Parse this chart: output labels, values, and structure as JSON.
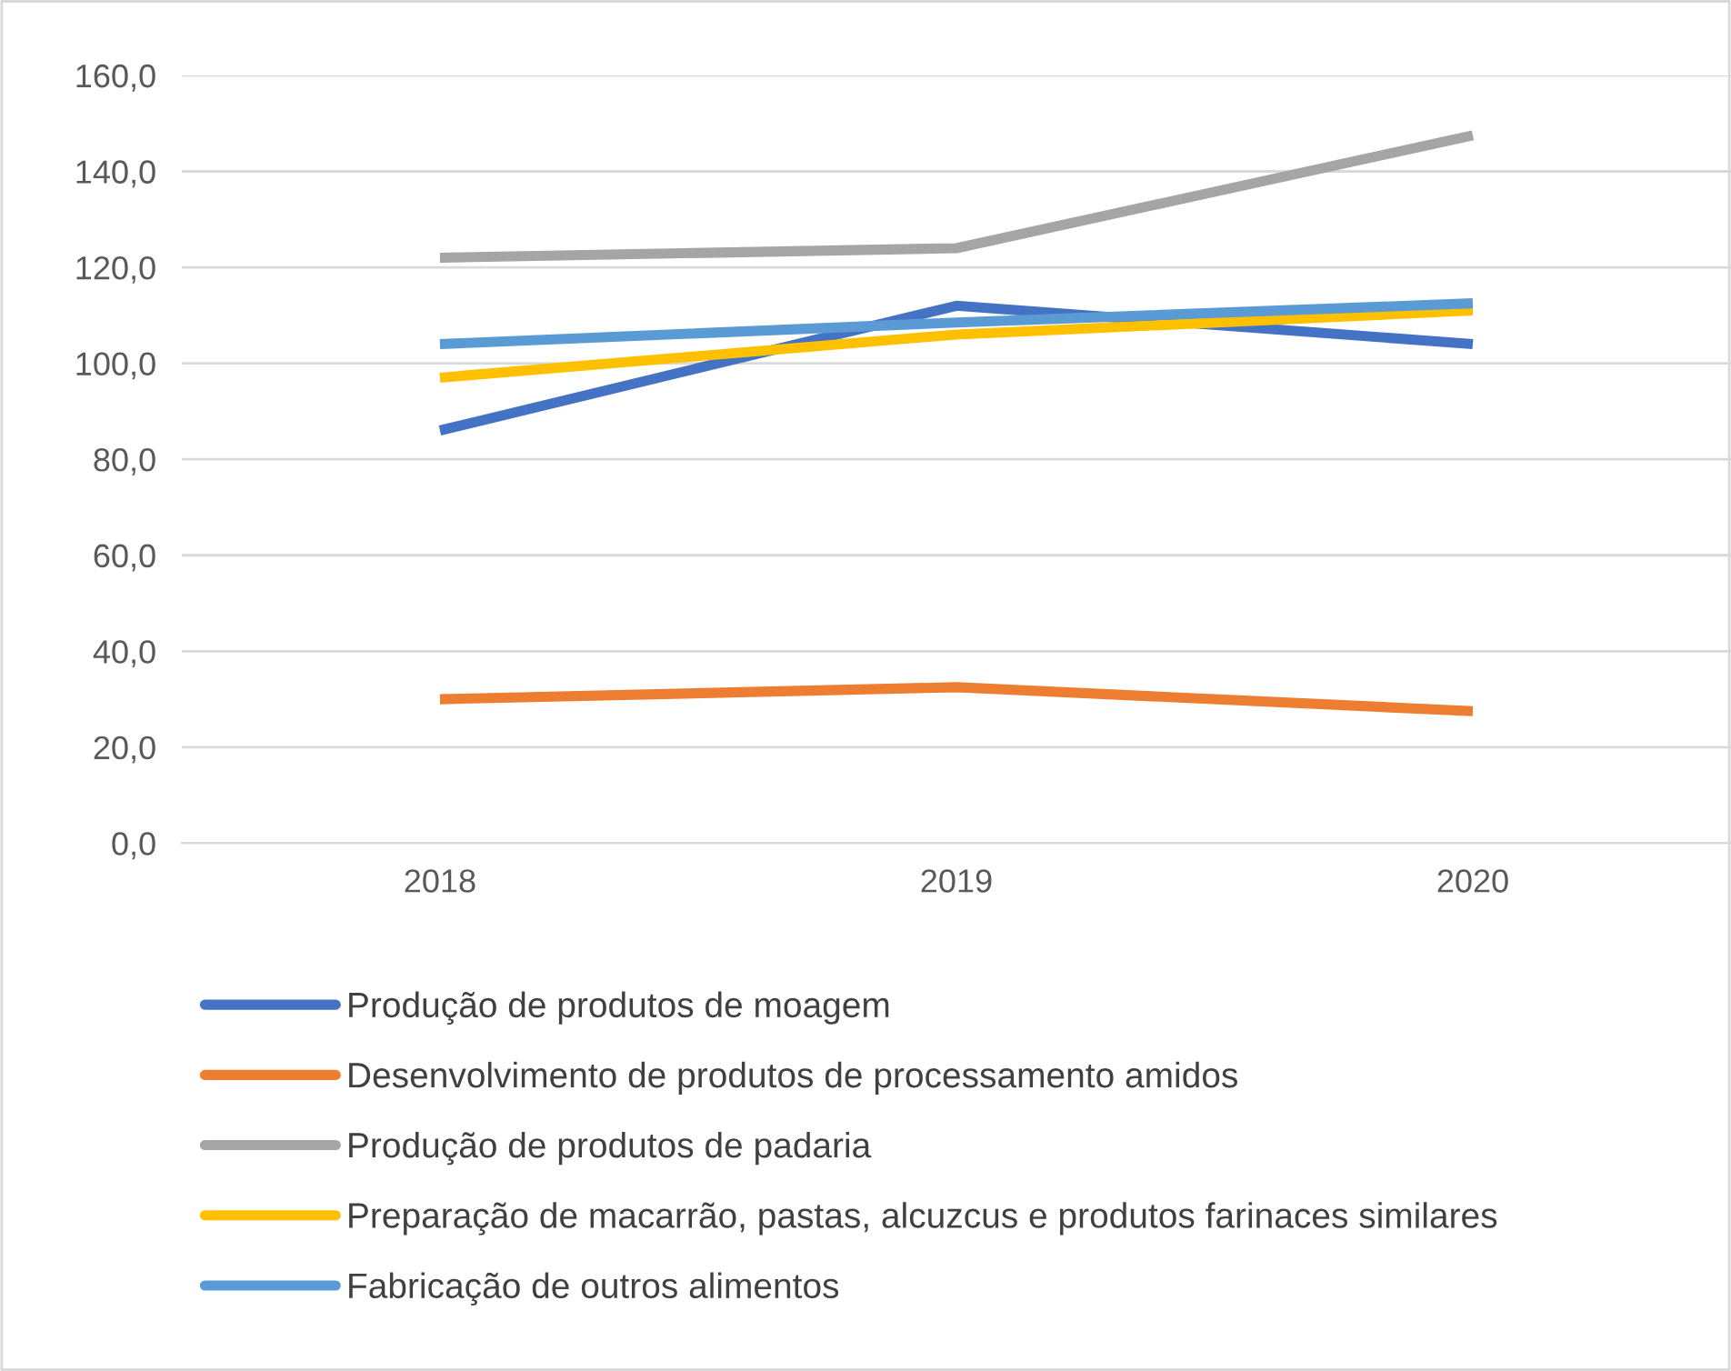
{
  "chart_data": {
    "type": "line",
    "categories": [
      "2018",
      "2019",
      "2020"
    ],
    "series": [
      {
        "name": "Produção de produtos de moagem",
        "color": "#4472c4",
        "values": [
          86,
          112,
          104
        ]
      },
      {
        "name": "Desenvolvimento de produtos de processamento amidos",
        "color": "#ed7d31",
        "values": [
          30,
          32.5,
          27.5
        ]
      },
      {
        "name": "Produção de produtos de padaria",
        "color": "#a5a5a5",
        "values": [
          122,
          124,
          147.5
        ]
      },
      {
        "name": "Preparação de macarrão, pastas, alcuzcus e produtos farinaces similares",
        "color": "#ffc000",
        "values": [
          97,
          106,
          111
        ]
      },
      {
        "name": "Fabricação de outros alimentos",
        "color": "#5b9bd5",
        "values": [
          104,
          108.5,
          112.5
        ]
      }
    ],
    "ylim": [
      0,
      160
    ],
    "yticks": [
      {
        "value": 0,
        "label": "0,0"
      },
      {
        "value": 20,
        "label": "20,0"
      },
      {
        "value": 40,
        "label": "40,0"
      },
      {
        "value": 60,
        "label": "60,0"
      },
      {
        "value": 80,
        "label": "80,0"
      },
      {
        "value": 100,
        "label": "100,0"
      },
      {
        "value": 120,
        "label": "120,0"
      },
      {
        "value": 140,
        "label": "140,0"
      },
      {
        "value": 160,
        "label": "160,0"
      }
    ],
    "grid": "y",
    "legend": "bottom",
    "marker": "none",
    "line_style": "solid"
  }
}
